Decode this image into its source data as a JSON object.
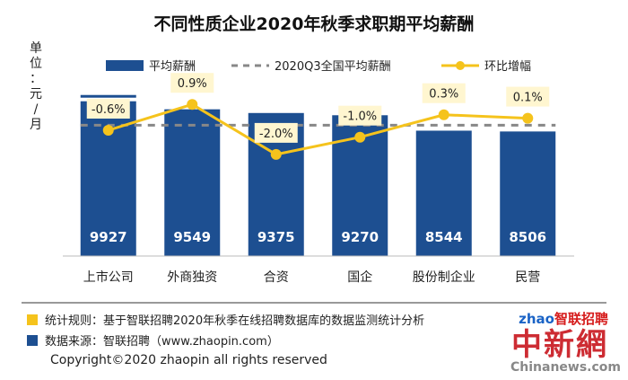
{
  "chart_data": {
    "type": "bar",
    "title": "不同性质企业2020年秋季求职期平均薪酬",
    "ylabel": "单位：元/月",
    "ylabel_chars": [
      "单",
      "位",
      "：",
      "元",
      "/",
      "月"
    ],
    "categories": [
      "上市公司",
      "外商独资",
      "合资",
      "国企",
      "股份制企业",
      "民营"
    ],
    "series": [
      {
        "name": "平均薪酬",
        "type": "bar",
        "values": [
          9927,
          9549,
          9375,
          9270,
          8544,
          8506
        ],
        "color": "#1d4f91"
      },
      {
        "name": "2020Q3全国平均薪酬",
        "type": "reference-line",
        "value": 8800,
        "color": "#888888"
      },
      {
        "name": "环比增幅",
        "type": "line",
        "values": [
          -0.6,
          0.9,
          -2.0,
          -1.0,
          0.3,
          0.1
        ],
        "labels": [
          "-0.6%",
          "0.9%",
          "-2.0%",
          "-1.0%",
          "0.3%",
          "0.1%"
        ],
        "color": "#f5c31c"
      }
    ],
    "legend_position": "top",
    "grid": false
  },
  "notes": {
    "rule": "统计规则：基于智联招聘2020年秋季在线招聘数据库的数据监测统计分析",
    "source": "数据来源：智联招聘（www.zhaopin.com）",
    "rule_color": "#f5c31c",
    "source_color": "#1d4f91"
  },
  "copyright": "Copyright©2020 zhaopin all rights reserved",
  "watermark": {
    "brand_prefix": "zhao",
    "brand": "智联招聘",
    "logo": "中新網",
    "site": "Chinanews.com"
  }
}
